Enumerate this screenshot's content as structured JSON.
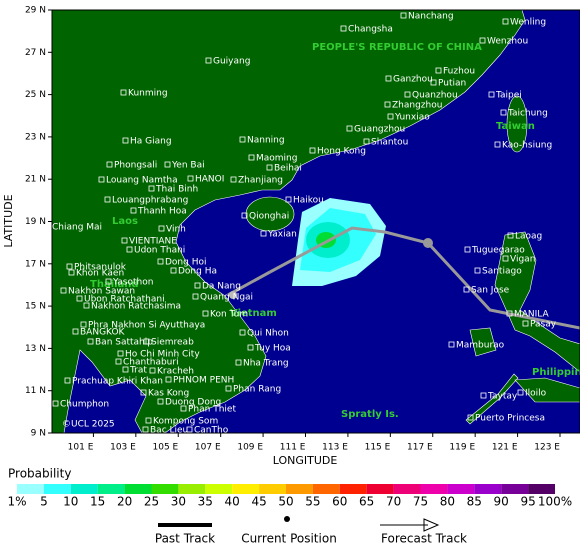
{
  "map": {
    "xlabel": "LONGITUDE",
    "ylabel": "LATITUDE",
    "lonlim": [
      99,
      123
    ],
    "latlim": [
      9,
      29
    ],
    "lat_ticks": [
      {
        "value": 29,
        "label": "29 N"
      },
      {
        "value": 27,
        "label": "27 N"
      },
      {
        "value": 25,
        "label": "25 N"
      },
      {
        "value": 23,
        "label": "23 N"
      },
      {
        "value": 21,
        "label": "21 N"
      },
      {
        "value": 19,
        "label": "19 N"
      },
      {
        "value": 17,
        "label": "17 N"
      },
      {
        "value": 15,
        "label": "15 N"
      },
      {
        "value": 13,
        "label": "13 N"
      },
      {
        "value": 11,
        "label": "11 N"
      },
      {
        "value": 9,
        "label": "9 N"
      }
    ],
    "lon_ticks": [
      {
        "value": 101,
        "label": "101 E"
      },
      {
        "value": 103,
        "label": "103 E"
      },
      {
        "value": 105,
        "label": "105 E"
      },
      {
        "value": 107,
        "label": "107 E"
      },
      {
        "value": 109,
        "label": "109 E"
      },
      {
        "value": 111,
        "label": "111 E"
      },
      {
        "value": 113,
        "label": "113 E"
      },
      {
        "value": 115,
        "label": "115 E"
      },
      {
        "value": 117,
        "label": "117 E"
      },
      {
        "value": 119,
        "label": "119 E"
      },
      {
        "value": 121,
        "label": "121 E"
      },
      {
        "value": 123,
        "label": "123 E"
      }
    ],
    "regions": [
      "PEOPLE'S REPUBLIC OF CHINA",
      "Taiwan",
      "Laos",
      "Thailand",
      "Vietnam",
      "Spratly Is.",
      "Philippines"
    ],
    "places": [
      "Nanchang",
      "Wenling",
      "Changsha",
      "Wenzhou",
      "Guiyang",
      "Fuzhou",
      "Putian",
      "Ganzhou",
      "Kunming",
      "Quanzhou",
      "Taipei",
      "Zhangzhou",
      "Yunxiao",
      "Taichung",
      "Guangzhou",
      "Shantou",
      "Kao-hsiung",
      "Ha Giang",
      "Nanning",
      "Hong Kong",
      "Maoming",
      "Phongsali",
      "Yen Bai",
      "Beihai",
      "Zhanjiang",
      "Louang Namtha",
      "HANOI",
      "Thai Binh",
      "Louangphrabang",
      "Haikou",
      "Thanh Hoa",
      "Qionghai",
      "Chiang Mai",
      "Vinh",
      "Yaxian",
      "VIENTIANE",
      "Udon Thani",
      "Laoag",
      "Tuguegarao",
      "Vigan",
      "Dong Hoi",
      "Phitsanulok",
      "Dong Ha",
      "Khon Kaen",
      "Santiago",
      "Yasothon",
      "Nakhon Sawan",
      "Da Nang",
      "San Jose",
      "Ubon Ratchathani",
      "Quang Ngai",
      "Nakhon Ratchasima",
      "Kon Tum",
      "MANILA",
      "Pasay",
      "Phra Nakhon Si Ayutthaya",
      "Qui Nhon",
      "BANGKOK",
      "Ban Sattahip",
      "Siemreab",
      "Mamburao",
      "Tuy Hoa",
      "Ho Chi Minh City",
      "Chanthaburi",
      "Nha Trang",
      "Trat",
      "Kracheh",
      "Prachuap Khiri Khan",
      "PHNOM PENH",
      "Phan Rang",
      "Kas Kong",
      "Taytay",
      "Iloilo",
      "Duong Dong",
      "Chumphon",
      "Phan Thiet",
      "Puerto Princesa",
      "Kompong Som",
      "Bac Lieu",
      "CanTho"
    ],
    "credit": "©UCL 2025"
  },
  "legend": {
    "title": "Probability",
    "scale_labels": [
      "1%",
      "5",
      "10",
      "15",
      "20",
      "25",
      "30",
      "35",
      "40",
      "45",
      "50",
      "55",
      "60",
      "65",
      "70",
      "75",
      "80",
      "85",
      "90",
      "95",
      "100%"
    ],
    "colors": [
      "#99ffff",
      "#33ffff",
      "#00eecc",
      "#00ee88",
      "#00dd33",
      "#33dd00",
      "#99ee00",
      "#ccff00",
      "#ffee00",
      "#ffcc00",
      "#ff9900",
      "#ff6600",
      "#ff2200",
      "#ee0033",
      "#ee0077",
      "#ee00aa",
      "#cc00cc",
      "#9900cc",
      "#770099",
      "#550066"
    ],
    "items": [
      "Past Track",
      "Current Position",
      "Forecast Track"
    ]
  }
}
